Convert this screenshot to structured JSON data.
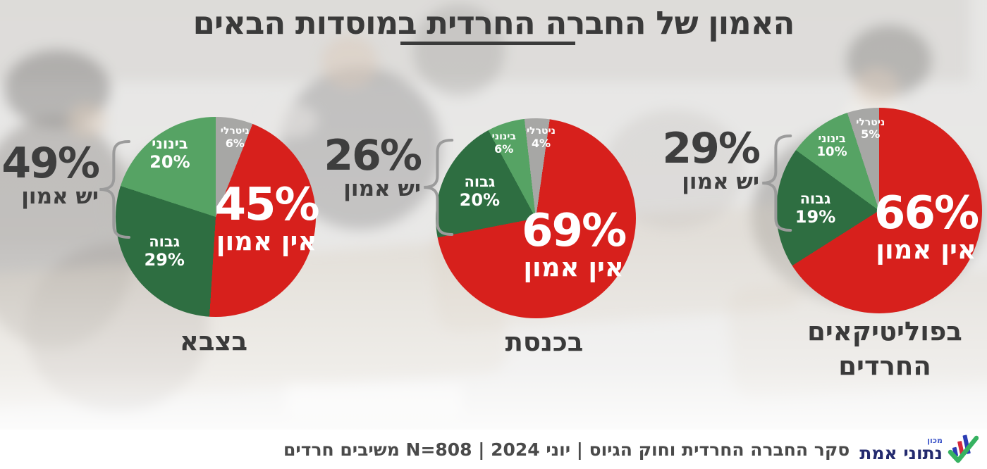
{
  "title": {
    "text": "האמון של החברה החרדית במוסדות הבאים"
  },
  "chart_data": [
    {
      "type": "pie",
      "title": "בצבא",
      "caption_lines": [
        "בצבא"
      ],
      "slices": [
        {
          "label": "אין אמון",
          "value": 45,
          "pct_text": "45%",
          "color": "#d7201c",
          "role": "no-trust"
        },
        {
          "label": "גבוה",
          "value": 29,
          "pct_text": "29%",
          "color": "#2e6e41",
          "role": "trust-high"
        },
        {
          "label": "בינוני",
          "value": 20,
          "pct_text": "20%",
          "color": "#56a364",
          "role": "trust-medium"
        },
        {
          "label": "ניטרלי",
          "value": 6,
          "pct_text": "6%",
          "color": "#a7a7a5",
          "role": "neutral"
        }
      ],
      "trust_callout": {
        "pct_text": "49%",
        "label": "יש אמון"
      },
      "rotation_deg": 21.6
    },
    {
      "type": "pie",
      "title": "בכנסת",
      "caption_lines": [
        "בכנסת"
      ],
      "slices": [
        {
          "label": "אין אמון",
          "value": 69,
          "pct_text": "69%",
          "color": "#d7201c",
          "role": "no-trust"
        },
        {
          "label": "גבוה",
          "value": 20,
          "pct_text": "20%",
          "color": "#2e6e41",
          "role": "trust-high"
        },
        {
          "label": "בינוני",
          "value": 6,
          "pct_text": "6%",
          "color": "#56a364",
          "role": "trust-medium"
        },
        {
          "label": "ניטרלי",
          "value": 4,
          "pct_text": "4%",
          "color": "#a7a7a5",
          "role": "neutral"
        }
      ],
      "trust_callout": {
        "pct_text": "26%",
        "label": "יש אמון"
      },
      "rotation_deg": 8
    },
    {
      "type": "pie",
      "title": "בפוליטיקאים החרדים",
      "caption_lines": [
        "בפוליטיקאים",
        "החרדים"
      ],
      "slices": [
        {
          "label": "אין אמון",
          "value": 66,
          "pct_text": "66%",
          "color": "#d7201c",
          "role": "no-trust"
        },
        {
          "label": "גבוה",
          "value": 19,
          "pct_text": "19%",
          "color": "#2e6e41",
          "role": "trust-high"
        },
        {
          "label": "בינוני",
          "value": 10,
          "pct_text": "10%",
          "color": "#56a364",
          "role": "trust-medium"
        },
        {
          "label": "ניטרלי",
          "value": 5,
          "pct_text": "5%",
          "color": "#a7a7a5",
          "role": "neutral"
        }
      ],
      "trust_callout": {
        "pct_text": "29%",
        "label": "יש אמון"
      },
      "rotation_deg": 0
    }
  ],
  "footer": {
    "survey_text": "סקר החברה החרדית וחוק הגיוס | יוני 2024 | N=808 משיבים חרדים",
    "logo": {
      "institute": "מכון",
      "name": "נתוני אמת"
    }
  },
  "colors": {
    "no_trust_red": "#d7201c",
    "trust_high_green": "#2e6e41",
    "trust_medium_green": "#56a364",
    "neutral_gray": "#a7a7a5",
    "text_dark": "#3a3a3a",
    "brace_gray": "#9b9b9b",
    "logo_navy": "#232a6e",
    "logo_blue": "#3d55c8",
    "logo_bar_red": "#d6283c",
    "logo_check_green": "#36b261"
  }
}
